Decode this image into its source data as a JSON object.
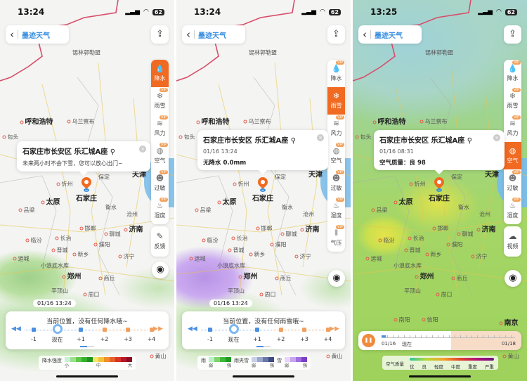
{
  "map": {
    "cities": [
      {
        "name": "锡林郭勒盟",
        "big": false,
        "dot": false
      },
      {
        "name": "呼和浩特",
        "big": true,
        "dot": true
      },
      {
        "name": "乌兰察布",
        "big": false,
        "dot": true
      },
      {
        "name": "包头",
        "big": false,
        "dot": true
      },
      {
        "name": "天津",
        "big": true,
        "dot": false
      },
      {
        "name": "保定",
        "big": false,
        "dot": false
      },
      {
        "name": "忻州",
        "big": false,
        "dot": true
      },
      {
        "name": "石家庄",
        "big": true,
        "dot": false
      },
      {
        "name": "太原",
        "big": true,
        "dot": true
      },
      {
        "name": "衡水",
        "big": false,
        "dot": false
      },
      {
        "name": "沧州",
        "big": false,
        "dot": false
      },
      {
        "name": "吕梁",
        "big": false,
        "dot": true
      },
      {
        "name": "邯郸",
        "big": false,
        "dot": true
      },
      {
        "name": "济南",
        "big": true,
        "dot": true
      },
      {
        "name": "聊城",
        "big": false,
        "dot": true
      },
      {
        "name": "长治",
        "big": false,
        "dot": true
      },
      {
        "name": "临汾",
        "big": false,
        "dot": true
      },
      {
        "name": "晋城",
        "big": false,
        "dot": true
      },
      {
        "name": "濮阳",
        "big": false,
        "dot": true
      },
      {
        "name": "新乡",
        "big": false,
        "dot": true
      },
      {
        "name": "济宁",
        "big": false,
        "dot": true
      },
      {
        "name": "运城",
        "big": false,
        "dot": true
      },
      {
        "name": "小浪底水库",
        "big": false,
        "dot": false
      },
      {
        "name": "郑州",
        "big": true,
        "dot": true
      },
      {
        "name": "商丘",
        "big": false,
        "dot": true
      },
      {
        "name": "平顶山",
        "big": false,
        "dot": false
      },
      {
        "name": "周口",
        "big": false,
        "dot": true
      },
      {
        "name": "南阳",
        "big": false,
        "dot": true
      },
      {
        "name": "信阳",
        "big": false,
        "dot": true
      },
      {
        "name": "南京",
        "big": true,
        "dot": true
      },
      {
        "name": "黄山",
        "big": false,
        "dot": true
      }
    ]
  },
  "app": {
    "logo": "墨迹天气",
    "back_icon": "chevron-left-icon",
    "share_icon": "share-icon",
    "locate_icon": "locate-icon",
    "accent": "#f06a22"
  },
  "panels": [
    {
      "status_time": "13:24",
      "battery": "62",
      "layers": [
        {
          "label": "降水",
          "vip": false,
          "active": true
        },
        {
          "label": "雨雪",
          "vip": true
        },
        {
          "label": "风力",
          "vip": true
        },
        {
          "label": "空气",
          "vip": true
        },
        {
          "label": "过敏",
          "vip": true
        },
        {
          "label": "湿度",
          "vip": true
        }
      ],
      "extra_button": "反馈",
      "card": {
        "title": "石家庄市长安区 乐汇城A座",
        "subtitle": "未来两小时不会下雪，您可以放心出门~"
      },
      "time_badge": "01/16 13:24",
      "timeline": {
        "message": "当前位置，没有任何降水哦~",
        "ticks": [
          "-1",
          "现在",
          "+1",
          "+2",
          "+3",
          "+4"
        ]
      },
      "legend": {
        "title": "降水强度",
        "labels": [
          "小",
          "中",
          "大"
        ]
      }
    },
    {
      "status_time": "13:24",
      "battery": "62",
      "layers": [
        {
          "label": "降水",
          "vip": true
        },
        {
          "label": "雨雪",
          "vip": false,
          "active": true
        },
        {
          "label": "风力",
          "vip": true
        },
        {
          "label": "空气",
          "vip": true
        },
        {
          "label": "过敏",
          "vip": true
        },
        {
          "label": "湿度",
          "vip": true
        },
        {
          "label": "气压",
          "vip": true
        }
      ],
      "card": {
        "title": "石家庄市长安区 乐汇城A座",
        "date": "01/16 13:24",
        "value": "无降水 0.0mm"
      },
      "time_badge": "01/16 13:24",
      "timeline": {
        "message": "当前位置，没有任何雨雪哦~",
        "ticks": [
          "-1",
          "现在",
          "+1",
          "+2",
          "+3",
          "+4"
        ]
      },
      "legend": {
        "groups": [
          {
            "title": "雨",
            "low": "弱",
            "high": "强"
          },
          {
            "title": "雨夹雪",
            "low": "弱",
            "high": "强"
          },
          {
            "title": "雪",
            "low": "弱",
            "high": "强"
          }
        ]
      }
    },
    {
      "status_time": "13:25",
      "battery": "62",
      "layers": [
        {
          "label": "降水",
          "vip": true
        },
        {
          "label": "雨雪",
          "vip": true
        },
        {
          "label": "风力",
          "vip": true
        },
        {
          "label": "空气",
          "vip": false,
          "active": true
        },
        {
          "label": "过敏",
          "vip": true
        },
        {
          "label": "湿度",
          "vip": true
        }
      ],
      "extra_button": "视频",
      "card": {
        "title": "石家庄市长安区 乐汇城A座",
        "date": "01/16 08:31",
        "value": "空气质量：良 98"
      },
      "player": {
        "start": "01/16",
        "now": "现在",
        "end": "01/18",
        "progress": 0.03
      },
      "legend": {
        "title": "空气质量",
        "labels": [
          "优",
          "良",
          "轻度",
          "中度",
          "重度",
          "严重"
        ]
      }
    }
  ],
  "vip_label": "VIP",
  "colors": {
    "rain": [
      "#c8f0d8",
      "#9be08a",
      "#5fc94a",
      "#36b02f",
      "#1d9420",
      "#f6e56a",
      "#f3c43a",
      "#f0902a",
      "#e8602a",
      "#d8342a",
      "#b8162a",
      "#8e0c22"
    ],
    "rain_snow": {
      "rain": [
        "#b8f0c8",
        "#7ed46a",
        "#3fb83a",
        "#1f9a22"
      ],
      "sleet": [
        "#c8d0e8",
        "#9aa6cc",
        "#6a78a8",
        "#3e4c84"
      ],
      "snow": [
        "#e8d6fa",
        "#c8a4f0",
        "#a070e0",
        "#7a3ec8"
      ]
    }
  }
}
